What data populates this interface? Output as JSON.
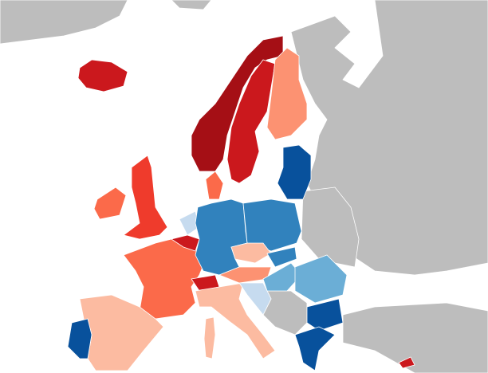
{
  "map": {
    "sea_color": "#ffffff",
    "land_color": "#bdbdbd",
    "border_color": "#ffffff",
    "regions": [
      {
        "color": "#cb181d"
      },
      {
        "color": "#a50f15"
      },
      {
        "color": "#cb181d"
      },
      {
        "color": "#fc9272"
      },
      {
        "color": "#08519c"
      },
      {
        "color": "#fb6a4a"
      },
      {
        "color": "#ef3b2c"
      },
      {
        "color": "#fb6a4a"
      },
      {
        "color": "#fb6a4a"
      },
      {
        "color": "#c6dbef"
      },
      {
        "color": "#cb181d"
      },
      {
        "color": "#3182bd"
      },
      {
        "color": "#3182bd"
      },
      {
        "color": "#fcbba1"
      },
      {
        "color": "#3182bd"
      },
      {
        "color": "#fc9272"
      },
      {
        "color": "#6baed6"
      },
      {
        "color": "#6baed6"
      },
      {
        "color": "#08519c"
      },
      {
        "color": "#08519c"
      },
      {
        "color": "#cb181d"
      },
      {
        "color": "#fcbba1"
      },
      {
        "color": "#fcbba1"
      },
      {
        "color": "#08519c"
      },
      {
        "color": "#c6dbef"
      },
      {
        "color": "#cb181d"
      },
      {
        "color": "#fcbba1"
      }
    ]
  }
}
